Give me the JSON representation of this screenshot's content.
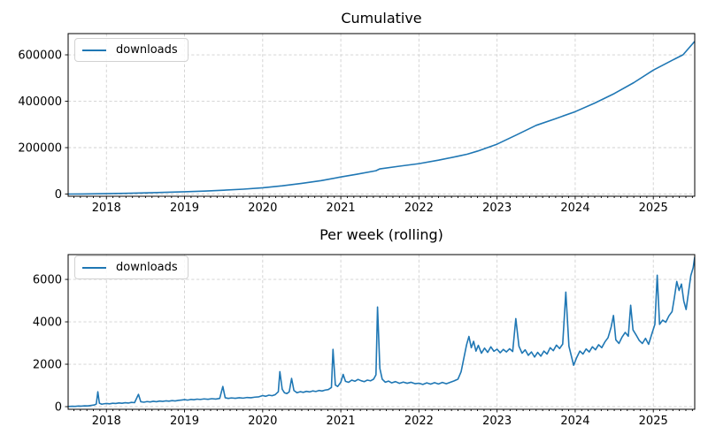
{
  "figure": {
    "background": "#ffffff",
    "accent_line_color": "#1f77b4",
    "grid_color": "#d0d0d0",
    "spine_color": "#000000",
    "text_color": "#000000"
  },
  "chart_data": [
    {
      "type": "line",
      "title": "Cumulative",
      "legend_position": "upper left",
      "grid": true,
      "xlim": [
        2017.51,
        2025.53
      ],
      "ylim": [
        -9500,
        691500
      ],
      "x_ticks": [
        2018,
        2019,
        2020,
        2021,
        2022,
        2023,
        2024,
        2025
      ],
      "x_tick_labels": [
        "2018",
        "2019",
        "2020",
        "2021",
        "2022",
        "2023",
        "2024",
        "2025"
      ],
      "y_ticks": [
        0,
        200000,
        400000,
        600000
      ],
      "y_tick_labels": [
        "0",
        "200000",
        "400000",
        "600000"
      ],
      "minor_ticks_per_year": 12,
      "series": [
        {
          "name": "downloads",
          "color": "#1f77b4",
          "points": [
            [
              2017.52,
              0
            ],
            [
              2017.7,
              300
            ],
            [
              2018.0,
              1800
            ],
            [
              2018.25,
              3300
            ],
            [
              2018.5,
              5200
            ],
            [
              2018.75,
              7300
            ],
            [
              2019.0,
              9800
            ],
            [
              2019.25,
              12800
            ],
            [
              2019.5,
              16500
            ],
            [
              2019.75,
              21000
            ],
            [
              2020.0,
              27000
            ],
            [
              2020.25,
              35500
            ],
            [
              2020.5,
              46000
            ],
            [
              2020.75,
              58000
            ],
            [
              2021.0,
              73500
            ],
            [
              2021.2,
              85000
            ],
            [
              2021.45,
              100500
            ],
            [
              2021.5,
              108500
            ],
            [
              2021.75,
              120000
            ],
            [
              2022.0,
              131000
            ],
            [
              2022.25,
              146000
            ],
            [
              2022.5,
              163000
            ],
            [
              2022.62,
              172000
            ],
            [
              2022.75,
              185000
            ],
            [
              2023.0,
              215000
            ],
            [
              2023.25,
              255000
            ],
            [
              2023.5,
              296000
            ],
            [
              2023.75,
              325000
            ],
            [
              2024.0,
              355000
            ],
            [
              2024.25,
              392000
            ],
            [
              2024.5,
              433000
            ],
            [
              2024.75,
              480000
            ],
            [
              2025.0,
              534000
            ],
            [
              2025.25,
              578000
            ],
            [
              2025.38,
              600000
            ],
            [
              2025.53,
              658000
            ]
          ]
        }
      ]
    },
    {
      "type": "line",
      "title": "Per week (rolling)",
      "legend_position": "upper left",
      "grid": true,
      "xlim": [
        2017.51,
        2025.53
      ],
      "ylim": [
        -125,
        7170
      ],
      "x_ticks": [
        2018,
        2019,
        2020,
        2021,
        2022,
        2023,
        2024,
        2025
      ],
      "x_tick_labels": [
        "2018",
        "2019",
        "2020",
        "2021",
        "2022",
        "2023",
        "2024",
        "2025"
      ],
      "y_ticks": [
        0,
        2000,
        4000,
        6000
      ],
      "y_tick_labels": [
        "0",
        "2000",
        "4000",
        "6000"
      ],
      "minor_ticks_per_year": 12,
      "series": [
        {
          "name": "downloads",
          "color": "#1f77b4",
          "points": [
            [
              2017.52,
              10
            ],
            [
              2017.56,
              18
            ],
            [
              2017.6,
              12
            ],
            [
              2017.64,
              30
            ],
            [
              2017.68,
              24
            ],
            [
              2017.72,
              40
            ],
            [
              2017.76,
              34
            ],
            [
              2017.8,
              55
            ],
            [
              2017.84,
              75
            ],
            [
              2017.87,
              120
            ],
            [
              2017.89,
              700
            ],
            [
              2017.91,
              160
            ],
            [
              2017.94,
              115
            ],
            [
              2017.97,
              135
            ],
            [
              2018.0,
              150
            ],
            [
              2018.04,
              132
            ],
            [
              2018.08,
              160
            ],
            [
              2018.12,
              148
            ],
            [
              2018.16,
              175
            ],
            [
              2018.2,
              158
            ],
            [
              2018.24,
              185
            ],
            [
              2018.28,
              168
            ],
            [
              2018.32,
              200
            ],
            [
              2018.36,
              188
            ],
            [
              2018.41,
              580
            ],
            [
              2018.44,
              230
            ],
            [
              2018.48,
              208
            ],
            [
              2018.52,
              240
            ],
            [
              2018.56,
              222
            ],
            [
              2018.6,
              252
            ],
            [
              2018.64,
              232
            ],
            [
              2018.68,
              262
            ],
            [
              2018.72,
              248
            ],
            [
              2018.76,
              272
            ],
            [
              2018.8,
              258
            ],
            [
              2018.84,
              285
            ],
            [
              2018.88,
              268
            ],
            [
              2018.92,
              295
            ],
            [
              2018.96,
              312
            ],
            [
              2019.0,
              332
            ],
            [
              2019.04,
              308
            ],
            [
              2019.08,
              340
            ],
            [
              2019.12,
              325
            ],
            [
              2019.16,
              355
            ],
            [
              2019.2,
              338
            ],
            [
              2019.25,
              365
            ],
            [
              2019.3,
              348
            ],
            [
              2019.35,
              375
            ],
            [
              2019.4,
              358
            ],
            [
              2019.45,
              388
            ],
            [
              2019.49,
              950
            ],
            [
              2019.52,
              420
            ],
            [
              2019.56,
              388
            ],
            [
              2019.6,
              412
            ],
            [
              2019.65,
              392
            ],
            [
              2019.7,
              420
            ],
            [
              2019.75,
              402
            ],
            [
              2019.8,
              432
            ],
            [
              2019.85,
              418
            ],
            [
              2019.9,
              448
            ],
            [
              2019.95,
              462
            ],
            [
              2020.0,
              520
            ],
            [
              2020.04,
              488
            ],
            [
              2020.08,
              542
            ],
            [
              2020.12,
              515
            ],
            [
              2020.16,
              565
            ],
            [
              2020.2,
              700
            ],
            [
              2020.22,
              1650
            ],
            [
              2020.25,
              820
            ],
            [
              2020.28,
              650
            ],
            [
              2020.31,
              618
            ],
            [
              2020.34,
              700
            ],
            [
              2020.37,
              1330
            ],
            [
              2020.4,
              760
            ],
            [
              2020.44,
              655
            ],
            [
              2020.48,
              705
            ],
            [
              2020.52,
              675
            ],
            [
              2020.56,
              722
            ],
            [
              2020.6,
              695
            ],
            [
              2020.64,
              742
            ],
            [
              2020.68,
              715
            ],
            [
              2020.72,
              762
            ],
            [
              2020.76,
              738
            ],
            [
              2020.8,
              782
            ],
            [
              2020.84,
              805
            ],
            [
              2020.88,
              905
            ],
            [
              2020.9,
              2700
            ],
            [
              2020.93,
              1020
            ],
            [
              2020.96,
              950
            ],
            [
              2021.0,
              1150
            ],
            [
              2021.03,
              1520
            ],
            [
              2021.06,
              1195
            ],
            [
              2021.1,
              1148
            ],
            [
              2021.14,
              1252
            ],
            [
              2021.18,
              1198
            ],
            [
              2021.22,
              1285
            ],
            [
              2021.26,
              1222
            ],
            [
              2021.3,
              1178
            ],
            [
              2021.34,
              1252
            ],
            [
              2021.38,
              1218
            ],
            [
              2021.42,
              1298
            ],
            [
              2021.45,
              1500
            ],
            [
              2021.47,
              4700
            ],
            [
              2021.5,
              1800
            ],
            [
              2021.53,
              1295
            ],
            [
              2021.57,
              1152
            ],
            [
              2021.61,
              1205
            ],
            [
              2021.65,
              1122
            ],
            [
              2021.7,
              1180
            ],
            [
              2021.75,
              1098
            ],
            [
              2021.8,
              1158
            ],
            [
              2021.85,
              1102
            ],
            [
              2021.9,
              1148
            ],
            [
              2021.95,
              1082
            ],
            [
              2022.0,
              1105
            ],
            [
              2022.05,
              1048
            ],
            [
              2022.1,
              1122
            ],
            [
              2022.15,
              1062
            ],
            [
              2022.2,
              1132
            ],
            [
              2022.25,
              1068
            ],
            [
              2022.3,
              1142
            ],
            [
              2022.35,
              1078
            ],
            [
              2022.4,
              1148
            ],
            [
              2022.45,
              1215
            ],
            [
              2022.5,
              1298
            ],
            [
              2022.54,
              1650
            ],
            [
              2022.58,
              2380
            ],
            [
              2022.61,
              2920
            ],
            [
              2022.64,
              3310
            ],
            [
              2022.67,
              2780
            ],
            [
              2022.7,
              3080
            ],
            [
              2022.73,
              2620
            ],
            [
              2022.76,
              2890
            ],
            [
              2022.8,
              2520
            ],
            [
              2022.84,
              2760
            ],
            [
              2022.88,
              2560
            ],
            [
              2022.92,
              2820
            ],
            [
              2022.96,
              2610
            ],
            [
              2023.0,
              2710
            ],
            [
              2023.04,
              2540
            ],
            [
              2023.08,
              2700
            ],
            [
              2023.12,
              2580
            ],
            [
              2023.16,
              2730
            ],
            [
              2023.2,
              2600
            ],
            [
              2023.24,
              4150
            ],
            [
              2023.28,
              2850
            ],
            [
              2023.32,
              2520
            ],
            [
              2023.36,
              2680
            ],
            [
              2023.4,
              2420
            ],
            [
              2023.44,
              2580
            ],
            [
              2023.48,
              2340
            ],
            [
              2023.52,
              2560
            ],
            [
              2023.56,
              2380
            ],
            [
              2023.6,
              2620
            ],
            [
              2023.64,
              2480
            ],
            [
              2023.68,
              2780
            ],
            [
              2023.72,
              2640
            ],
            [
              2023.76,
              2900
            ],
            [
              2023.8,
              2740
            ],
            [
              2023.84,
              2950
            ],
            [
              2023.88,
              5400
            ],
            [
              2023.92,
              2850
            ],
            [
              2023.98,
              1950
            ],
            [
              2024.02,
              2320
            ],
            [
              2024.06,
              2620
            ],
            [
              2024.1,
              2480
            ],
            [
              2024.14,
              2720
            ],
            [
              2024.18,
              2580
            ],
            [
              2024.22,
              2820
            ],
            [
              2024.26,
              2680
            ],
            [
              2024.3,
              2920
            ],
            [
              2024.34,
              2780
            ],
            [
              2024.38,
              3050
            ],
            [
              2024.42,
              3250
            ],
            [
              2024.46,
              3750
            ],
            [
              2024.49,
              4300
            ],
            [
              2024.52,
              3150
            ],
            [
              2024.56,
              2980
            ],
            [
              2024.6,
              3280
            ],
            [
              2024.64,
              3500
            ],
            [
              2024.68,
              3320
            ],
            [
              2024.71,
              4780
            ],
            [
              2024.74,
              3620
            ],
            [
              2024.78,
              3380
            ],
            [
              2024.82,
              3120
            ],
            [
              2024.86,
              2980
            ],
            [
              2024.9,
              3220
            ],
            [
              2024.94,
              2940
            ],
            [
              2024.98,
              3420
            ],
            [
              2025.02,
              3880
            ],
            [
              2025.05,
              6200
            ],
            [
              2025.08,
              3880
            ],
            [
              2025.12,
              4080
            ],
            [
              2025.16,
              3980
            ],
            [
              2025.2,
              4280
            ],
            [
              2025.24,
              4480
            ],
            [
              2025.27,
              5150
            ],
            [
              2025.3,
              5900
            ],
            [
              2025.33,
              5480
            ],
            [
              2025.36,
              5780
            ],
            [
              2025.39,
              4980
            ],
            [
              2025.42,
              4580
            ],
            [
              2025.45,
              5380
            ],
            [
              2025.48,
              6180
            ],
            [
              2025.51,
              6550
            ],
            [
              2025.53,
              7050
            ]
          ]
        }
      ]
    }
  ]
}
